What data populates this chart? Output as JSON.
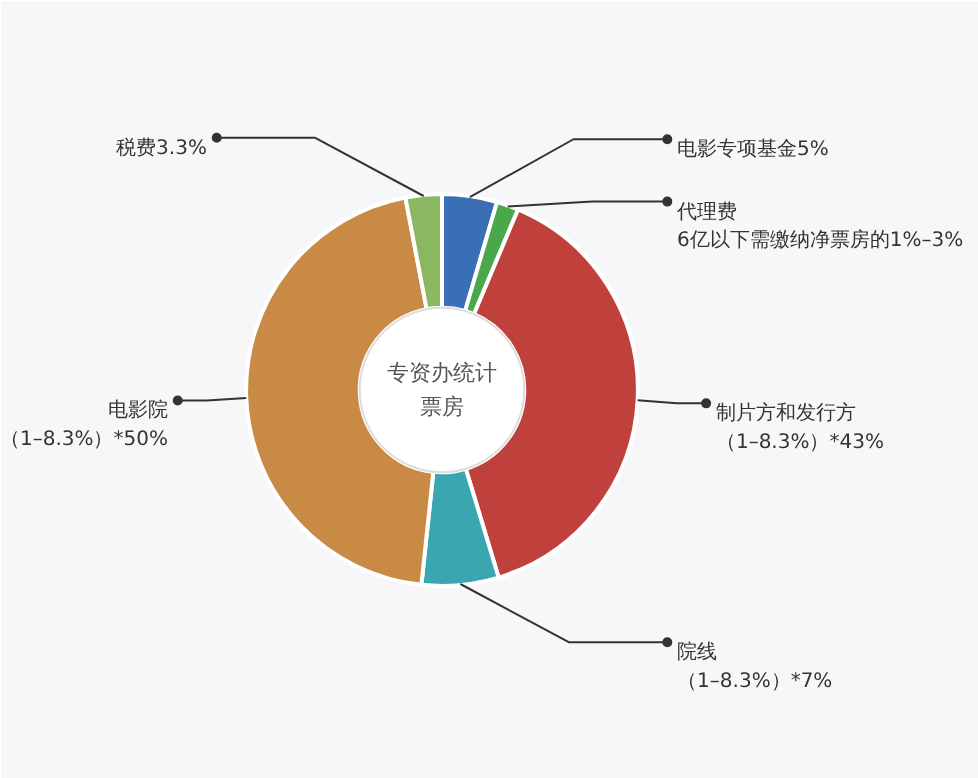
{
  "chart_data": {
    "type": "donut",
    "categories": [
      "电影专项基金5%",
      "代理费6亿以下需缴纳净票房的1%–3%",
      "制片方和发行方（1–8.3%）*43%",
      "院线（1–8.3%）*7%",
      "电影院（1–8.3%）*50%",
      "税费3.3%"
    ],
    "values": [
      5,
      2,
      43,
      7,
      50,
      3.3
    ],
    "colors": [
      "#3a6fb5",
      "#4aa84a",
      "#c0413c",
      "#3aa6b0",
      "#c98a45",
      "#8ab860"
    ],
    "annotations": [
      "专资办统计票房"
    ]
  }
}
